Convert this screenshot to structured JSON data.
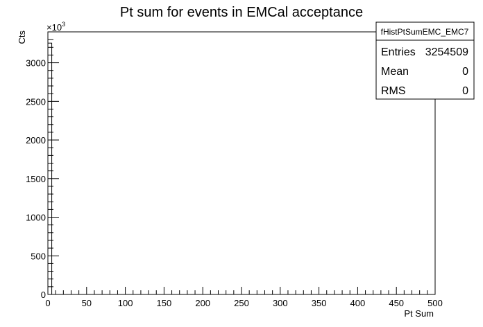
{
  "chart_data": {
    "type": "bar",
    "title": "Pt sum for events in EMCal acceptance",
    "xlabel": "Pt Sum",
    "ylabel": "Cts",
    "y_multiplier_label": "×10",
    "y_multiplier_exponent": "3",
    "xlim": [
      0,
      500
    ],
    "ylim": [
      0,
      3400
    ],
    "x_ticks": [
      0,
      50,
      100,
      150,
      200,
      250,
      300,
      350,
      400,
      450,
      500
    ],
    "y_ticks": [
      0,
      500,
      1000,
      1500,
      2000,
      2500,
      3000
    ],
    "x_tick_labels": [
      "0",
      "50",
      "100",
      "150",
      "200",
      "250",
      "300",
      "350",
      "400",
      "450",
      "500"
    ],
    "y_tick_labels": [
      "0",
      "500",
      "1000",
      "1500",
      "2000",
      "2500",
      "3000"
    ],
    "bins": [
      {
        "x_low": 0,
        "x_high": 5,
        "value": 3254.509
      }
    ],
    "stats_box": {
      "name": "fHistPtSumEMC_EMC7",
      "rows": [
        {
          "label": "Entries",
          "value": "3254509"
        },
        {
          "label": "Mean",
          "value": "0"
        },
        {
          "label": "RMS",
          "value": "0"
        }
      ]
    },
    "line_color": "#000000",
    "background": "#ffffff",
    "grid": false
  }
}
